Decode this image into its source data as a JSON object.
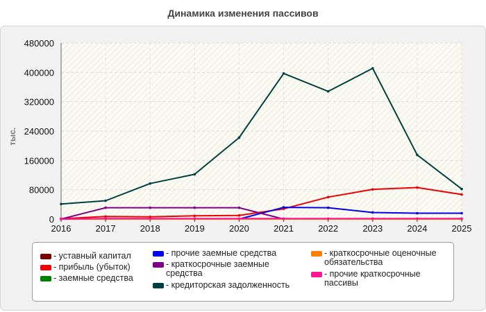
{
  "title": "Динамика изменения пассивов",
  "chart_data": {
    "type": "line",
    "title": "Динамика изменения пассивов",
    "ylabel": "тыс.",
    "xlabel": "",
    "x": [
      "2016",
      "2017",
      "2018",
      "2019",
      "2020",
      "2021",
      "2022",
      "2023",
      "2024",
      "2025"
    ],
    "ylim": [
      0,
      480000
    ],
    "yticks": [
      0,
      80000,
      160000,
      240000,
      320000,
      400000,
      480000
    ],
    "ytick_labels": [
      "0",
      "80000",
      "160000",
      "240000",
      "320000",
      "400000",
      "480000"
    ],
    "grid": true,
    "legend_position": "bottom",
    "series": [
      {
        "name": "уставный капитал",
        "color": "#7a0000",
        "values": [
          0,
          0,
          0,
          0,
          0,
          0,
          0,
          0,
          0,
          0
        ]
      },
      {
        "name": "прибыль (убыток)",
        "color": "#ee0000",
        "values": [
          1000,
          7000,
          6000,
          9000,
          10000,
          28000,
          60000,
          81000,
          86000,
          67000
        ]
      },
      {
        "name": "заемные средства",
        "color": "#008000",
        "values": [
          0,
          0,
          0,
          0,
          0,
          0,
          0,
          0,
          0,
          0
        ]
      },
      {
        "name": "прочие заемные средства",
        "color": "#0000ee",
        "values": [
          0,
          0,
          0,
          0,
          0,
          32000,
          31000,
          18000,
          16000,
          16000
        ]
      },
      {
        "name": "краткосрочные заемные средства",
        "color": "#800080",
        "values": [
          0,
          31000,
          31000,
          31000,
          31000,
          0,
          0,
          0,
          0,
          0
        ]
      },
      {
        "name": "кредиторская задолженность",
        "color": "#003f3f",
        "values": [
          41000,
          50000,
          97000,
          122000,
          222000,
          397000,
          348000,
          411000,
          175000,
          82000
        ]
      },
      {
        "name": "краткосрочные оценочные обязательства",
        "color": "#ff8000",
        "values": [
          0,
          0,
          0,
          0,
          0,
          0,
          0,
          0,
          0,
          0
        ]
      },
      {
        "name": "прочие краткосрочные пассивы",
        "color": "#ff1493",
        "values": [
          0,
          1500,
          1500,
          1500,
          1500,
          1500,
          1500,
          1500,
          1500,
          1500
        ]
      }
    ]
  },
  "legend": {
    "items": [
      {
        "label": "- уставный капитал",
        "color": "#7a0000"
      },
      {
        "label": "- прибыль (убыток)",
        "color": "#ee0000"
      },
      {
        "label": "- заемные средства",
        "color": "#008000"
      },
      {
        "label": "- прочие заемные средства",
        "color": "#0000ee"
      },
      {
        "label": "- краткосрочные заемные средства",
        "color": "#800080"
      },
      {
        "label": "- кредиторская задолженность",
        "color": "#003f3f"
      },
      {
        "label": "- краткосрочные оценочные обязательства",
        "color": "#ff8000"
      },
      {
        "label": "- прочие краткосрочные пассивы",
        "color": "#ff1493"
      }
    ]
  }
}
